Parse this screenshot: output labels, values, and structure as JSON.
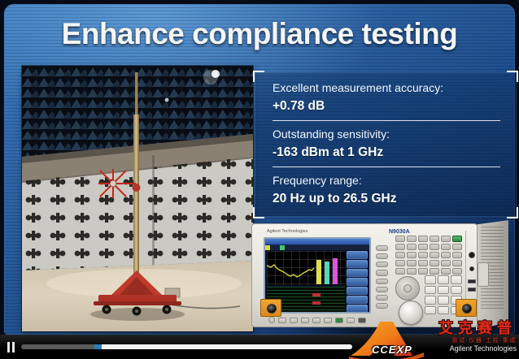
{
  "slide": {
    "title": "Enhance compliance testing",
    "specs": [
      {
        "label": "Excellent measurement accuracy:",
        "value": "+0.78 dB"
      },
      {
        "label": "Outstanding sensitivity:",
        "value": "-163 dBm at 1 GHz"
      },
      {
        "label": "Frequency range:",
        "value": "20 Hz up to 26.5 GHz"
      }
    ],
    "photo_subject": "EMC anechoic test chamber with antenna mast on red cart",
    "instrument": {
      "brand": "Agilent Technologies",
      "model": "N9030A"
    }
  },
  "player": {
    "state": "playing",
    "progress_percent": 22
  },
  "watermark": {
    "logo_text": "CCEXP",
    "brand_cn": "艾克赛普",
    "tagline_cn": "测试·仪器·工控·集成",
    "partner": "Agilent Technologies"
  },
  "colors": {
    "slide_blue": "#2d64a6",
    "playhead_blue": "#2e7cb8",
    "logo_orange": "#f08a1d",
    "logo_red": "#d92b1b"
  }
}
